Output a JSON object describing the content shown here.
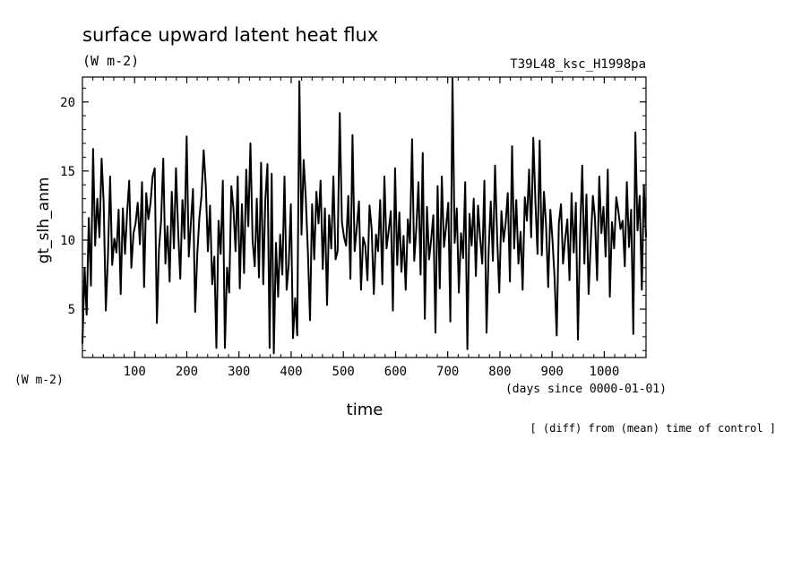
{
  "chart_data": {
    "type": "line",
    "title": "surface upward latent heat flux",
    "units_top": "(W m-2)",
    "run_label": "T39L48_ksc_H1998pa",
    "ylabel": "gt_slh_anm",
    "units_left": "(W m-2)",
    "xlabel": "time",
    "xunits": "(days since 0000-01-01)",
    "footnote": "[ (diff) from (mean) time of control ]",
    "xlim": [
      0,
      1080
    ],
    "ylim": [
      1.5,
      21.8
    ],
    "x_ticks": [
      100,
      200,
      300,
      400,
      500,
      600,
      700,
      800,
      900,
      1000
    ],
    "y_ticks": [
      5,
      10,
      15,
      20
    ],
    "grid": false,
    "series": [
      {
        "values": [
          2.5,
          8.0,
          4.6,
          11.6,
          6.7,
          16.6,
          9.6,
          13.0,
          10.2,
          15.9,
          12.7,
          4.9,
          8.9,
          14.6,
          8.2,
          10.1,
          9.1,
          12.2,
          6.1,
          12.3,
          9.0,
          11.9,
          14.3,
          8.0,
          10.5,
          11.2,
          12.7,
          9.7,
          14.2,
          6.6,
          13.4,
          11.5,
          12.7,
          14.6,
          15.2,
          4.0,
          9.3,
          11.4,
          15.9,
          8.3,
          11.0,
          7.0,
          13.5,
          9.4,
          15.2,
          10.7,
          7.2,
          12.9,
          10.1,
          17.5,
          8.8,
          11.3,
          13.7,
          4.8,
          9.0,
          11.6,
          13.2,
          16.5,
          13.9,
          9.2,
          12.5,
          6.8,
          8.8,
          2.2,
          11.4,
          9.0,
          14.3,
          2.2,
          8.0,
          6.2,
          13.9,
          12.3,
          9.2,
          14.6,
          6.5,
          12.6,
          7.6,
          15.1,
          11.0,
          17.0,
          10.0,
          8.1,
          13.0,
          7.3,
          15.6,
          6.8,
          12.9,
          15.5,
          2.2,
          14.8,
          1.8,
          9.8,
          5.9,
          10.4,
          7.5,
          14.6,
          6.4,
          8.2,
          12.6,
          2.9,
          5.8,
          3.1,
          21.5,
          10.4,
          15.8,
          13.1,
          9.2,
          4.2,
          12.6,
          8.6,
          13.5,
          11.2,
          14.3,
          7.9,
          12.3,
          5.3,
          11.8,
          9.4,
          14.6,
          8.6,
          9.2,
          19.2,
          11.3,
          10.2,
          9.6,
          13.2,
          7.2,
          17.6,
          9.2,
          10.9,
          12.8,
          6.4,
          10.2,
          9.6,
          7.1,
          12.5,
          10.8,
          6.1,
          10.4,
          9.2,
          12.9,
          6.8,
          14.6,
          9.4,
          10.7,
          12.1,
          4.9,
          15.2,
          8.2,
          12.0,
          7.7,
          10.3,
          6.4,
          11.5,
          9.8,
          17.3,
          8.5,
          10.9,
          14.2,
          7.5,
          16.3,
          4.3,
          12.4,
          8.6,
          10.1,
          11.8,
          3.3,
          13.9,
          6.5,
          14.6,
          9.5,
          11.0,
          12.7,
          4.1,
          21.7,
          9.8,
          12.3,
          6.2,
          10.5,
          8.7,
          14.2,
          2.1,
          11.9,
          9.6,
          13.0,
          7.4,
          12.5,
          10.1,
          8.3,
          14.3,
          3.3,
          9.3,
          12.8,
          8.5,
          15.4,
          10.3,
          6.2,
          12.1,
          9.9,
          11.2,
          13.4,
          7.0,
          16.8,
          9.4,
          12.9,
          8.3,
          10.6,
          6.4,
          13.1,
          11.4,
          15.1,
          10.2,
          17.4,
          12.7,
          9.0,
          17.2,
          8.9,
          13.5,
          11.1,
          6.6,
          12.2,
          10.0,
          7.3,
          3.1,
          11.2,
          12.6,
          8.3,
          10.1,
          11.5,
          7.1,
          13.4,
          9.1,
          12.7,
          2.8,
          10.4,
          15.4,
          8.3,
          13.3,
          6.1,
          9.8,
          13.2,
          11.6,
          7.1,
          14.6,
          10.5,
          12.4,
          8.8,
          15.1,
          5.9,
          11.3,
          9.4,
          13.1,
          12.1,
          10.8,
          11.4,
          8.1,
          14.2,
          9.5,
          12.2,
          3.2,
          17.8,
          10.7,
          13.2,
          6.4,
          14.0,
          10.2
        ]
      }
    ]
  }
}
